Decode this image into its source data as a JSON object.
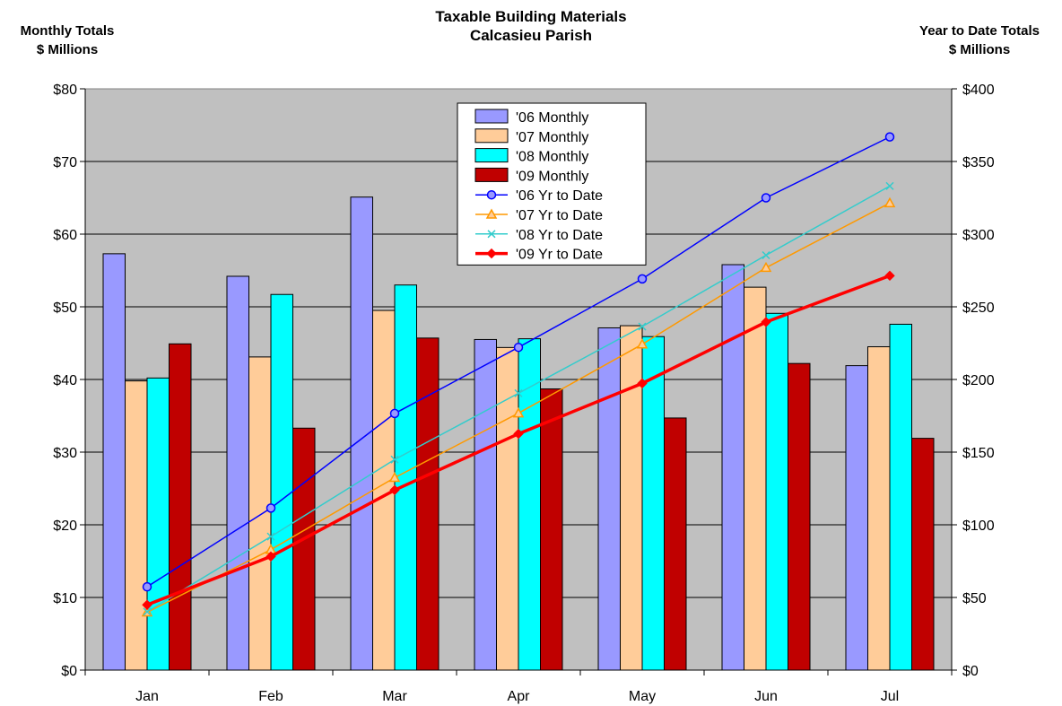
{
  "chart_data": {
    "type": "bar",
    "title": "Taxable Building Materials",
    "subtitle": "Calcasieu Parish",
    "y_left_label": [
      "Monthly Totals",
      "$ Millions"
    ],
    "y_right_label": [
      "Year to Date Totals",
      "$ Millions"
    ],
    "categories": [
      "Jan",
      "Feb",
      "Mar",
      "Apr",
      "May",
      "Jun",
      "Jul"
    ],
    "y_left_range": [
      0,
      80
    ],
    "y_right_range": [
      0,
      400
    ],
    "y_left_ticks": [
      "$0",
      "$10",
      "$20",
      "$30",
      "$40",
      "$50",
      "$60",
      "$70",
      "$80"
    ],
    "y_right_ticks": [
      "$0",
      "$50",
      "$100",
      "$150",
      "$200",
      "$250",
      "$300",
      "$350",
      "$400"
    ],
    "left_tick_values": [
      0,
      10,
      20,
      30,
      40,
      50,
      60,
      70,
      80
    ],
    "grid": true,
    "legend_position": "top-center",
    "bar_series": [
      {
        "name": "'06 Monthly",
        "color": "#9999ff",
        "values": [
          57.3,
          54.2,
          65.1,
          45.5,
          47.1,
          55.8,
          41.9
        ]
      },
      {
        "name": "'07 Monthly",
        "color": "#ffcc99",
        "values": [
          39.8,
          43.1,
          49.5,
          44.4,
          47.4,
          52.7,
          44.5
        ]
      },
      {
        "name": "'08 Monthly",
        "color": "#00ffff",
        "values": [
          40.2,
          51.7,
          53.0,
          45.6,
          45.9,
          49.1,
          47.6
        ]
      },
      {
        "name": "'09 Monthly",
        "color": "#c00000",
        "values": [
          44.9,
          33.3,
          45.7,
          38.7,
          34.7,
          42.2,
          31.9
        ]
      }
    ],
    "line_series": [
      {
        "name": "'06 Yr to Date",
        "color": "#0000ff",
        "marker": "circle",
        "values": [
          57.3,
          111.5,
          176.6,
          222.1,
          269.2,
          325.0,
          366.9
        ]
      },
      {
        "name": "'07 Yr to Date",
        "color": "#ff9900",
        "marker": "triangle",
        "values": [
          39.8,
          82.9,
          132.4,
          176.8,
          224.2,
          276.9,
          321.4
        ]
      },
      {
        "name": "'08 Yr to Date",
        "color": "#33cccc",
        "marker": "x",
        "values": [
          40.2,
          91.9,
          144.9,
          190.5,
          236.4,
          285.5,
          333.1
        ]
      },
      {
        "name": "'09 Yr to Date",
        "color": "#ff0000",
        "marker": "diamond",
        "values": [
          44.9,
          78.2,
          123.9,
          162.6,
          197.3,
          239.5,
          271.4
        ]
      }
    ]
  }
}
